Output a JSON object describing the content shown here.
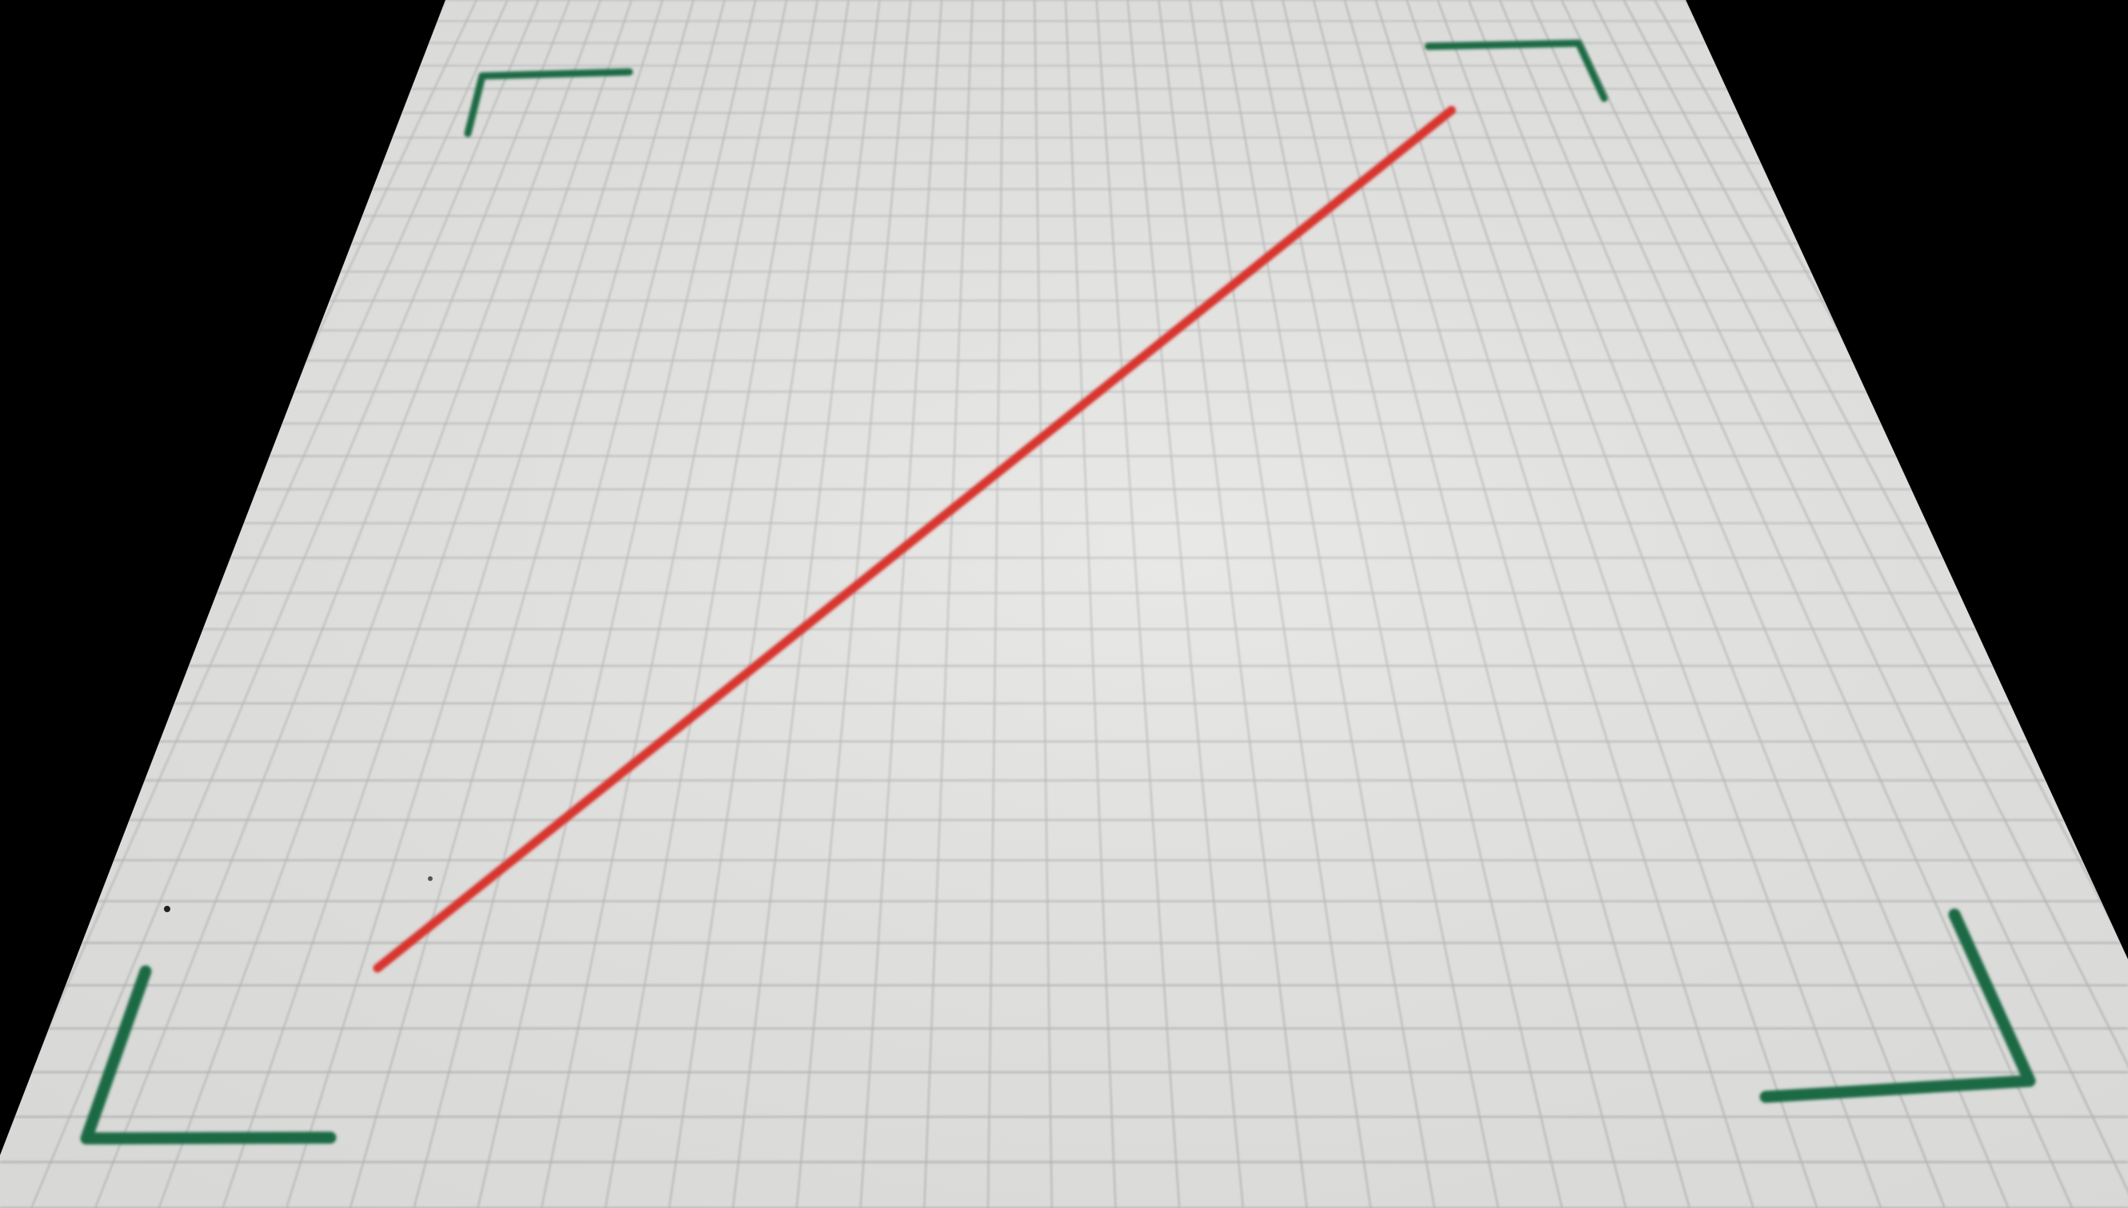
{
  "scene": {
    "background_color": "#000000",
    "paper_color": "#e6e6e4",
    "grid_line_color": "#b9bbbb",
    "grid_columns": 40,
    "grid_rows": 36,
    "corner_mark_color": "#1e6b45",
    "corner_mark_count": 4,
    "diagonal_line_color": "#d8362e",
    "diagonal_line_count": 1,
    "marks": [
      {
        "name": "top-left-corner-mark",
        "kind": "corner"
      },
      {
        "name": "top-right-corner-mark",
        "kind": "corner"
      },
      {
        "name": "bottom-left-corner-mark",
        "kind": "corner"
      },
      {
        "name": "bottom-right-corner-mark",
        "kind": "corner"
      }
    ]
  }
}
